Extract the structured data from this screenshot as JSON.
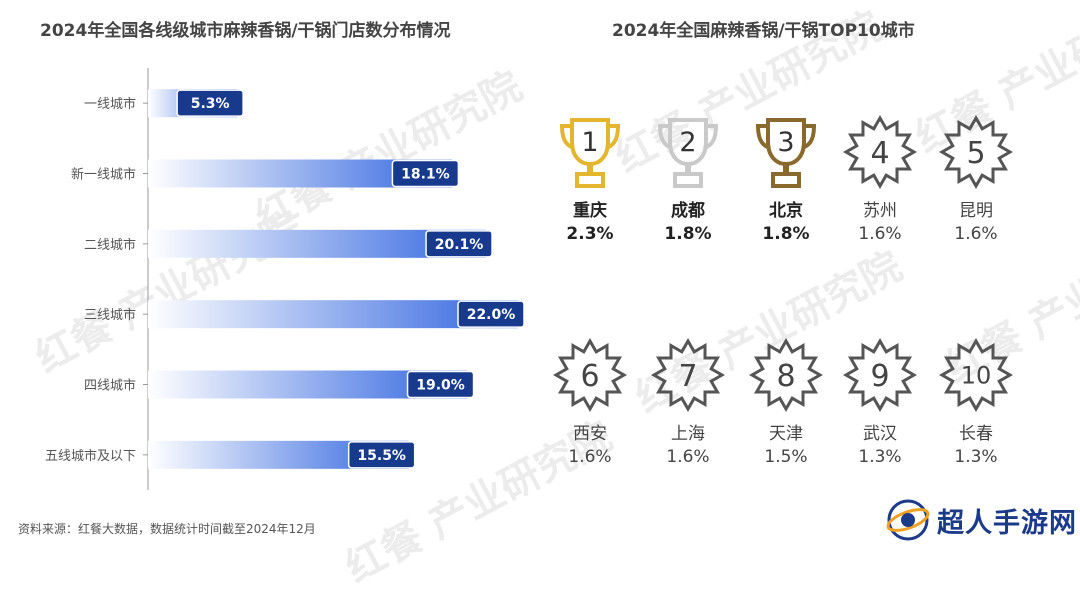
{
  "left_title": "2024年全国各线级城市麻辣香锅/干锅门店数分布情况",
  "right_title": "2024年全国麻辣香锅/干锅TOP10城市",
  "chart_data": {
    "type": "bar",
    "orientation": "horizontal",
    "categories": [
      "一线城市",
      "新一线城市",
      "二线城市",
      "三线城市",
      "四线城市",
      "五线城市及以下"
    ],
    "values": [
      5.3,
      18.1,
      20.1,
      22.0,
      19.0,
      15.5
    ],
    "value_labels": [
      "5.3%",
      "18.1%",
      "20.1%",
      "22.0%",
      "19.0%",
      "15.5%"
    ],
    "unit": "%",
    "xlim": [
      0,
      22
    ],
    "grid": false,
    "colors": {
      "bar_start": "#ffffff",
      "bar_end": "#2f63df",
      "label_bg": "#183a8c"
    }
  },
  "top10": [
    {
      "rank": "1",
      "city": "重庆",
      "share": "2.3%",
      "icon": "trophy-gold-icon",
      "color": "#e4b62f"
    },
    {
      "rank": "2",
      "city": "成都",
      "share": "1.8%",
      "icon": "trophy-silver-icon",
      "color": "#c9c9c9"
    },
    {
      "rank": "3",
      "city": "北京",
      "share": "1.8%",
      "icon": "trophy-bronze-icon",
      "color": "#8a6a2c"
    },
    {
      "rank": "4",
      "city": "苏州",
      "share": "1.6%",
      "icon": "badge-icon",
      "color": "#555555"
    },
    {
      "rank": "5",
      "city": "昆明",
      "share": "1.6%",
      "icon": "badge-icon",
      "color": "#555555"
    },
    {
      "rank": "6",
      "city": "西安",
      "share": "1.6%",
      "icon": "badge-icon",
      "color": "#555555"
    },
    {
      "rank": "7",
      "city": "上海",
      "share": "1.6%",
      "icon": "badge-icon",
      "color": "#555555"
    },
    {
      "rank": "8",
      "city": "天津",
      "share": "1.5%",
      "icon": "badge-icon",
      "color": "#555555"
    },
    {
      "rank": "9",
      "city": "武汉",
      "share": "1.3%",
      "icon": "badge-icon",
      "color": "#555555"
    },
    {
      "rank": "10",
      "city": "长春",
      "share": "1.3%",
      "icon": "badge-icon",
      "color": "#555555"
    }
  ],
  "source": "资料来源：红餐大数据，数据统计时间截至2024年12月",
  "watermark": "红餐 产业研究院",
  "logo_text": "超人手游网"
}
